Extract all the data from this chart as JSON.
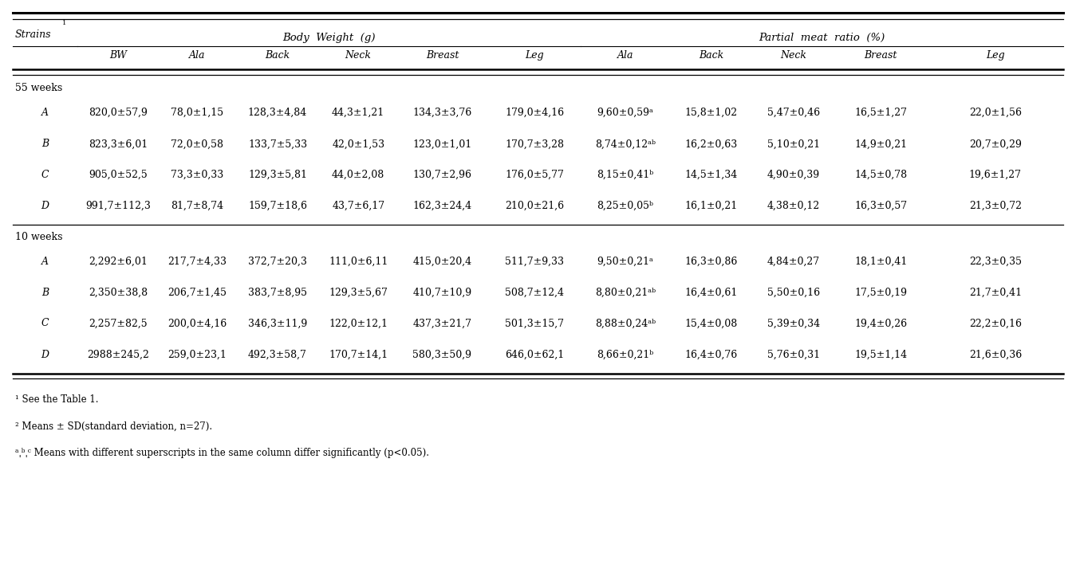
{
  "header_bw": "Body  Weight  (g)",
  "header_pmr": "Partial  meat  ratio  (%)",
  "strains_label": "Strains",
  "strains_super": "1",
  "subheaders": [
    "BW",
    "Ala",
    "Back",
    "Neck",
    "Breast",
    "Leg",
    "Ala",
    "Back",
    "Neck",
    "Breast",
    "Leg"
  ],
  "group1_label": "55 weeks",
  "group2_label": "10 weeks",
  "rows_5weeks": [
    [
      "A",
      "820,0±57,9",
      "78,0±1,15",
      "128,3±4,84",
      "44,3±1,21",
      "134,3±3,76",
      "179,0±4,16",
      "9,60±0,59ᵃ",
      "15,8±1,02",
      "5,47±0,46",
      "16,5±1,27",
      "22,0±1,56"
    ],
    [
      "B",
      "823,3±6,01",
      "72,0±0,58",
      "133,7±5,33",
      "42,0±1,53",
      "123,0±1,01",
      "170,7±3,28",
      "8,74±0,12ᵃᵇ",
      "16,2±0,63",
      "5,10±0,21",
      "14,9±0,21",
      "20,7±0,29"
    ],
    [
      "C",
      "905,0±52,5",
      "73,3±0,33",
      "129,3±5,81",
      "44,0±2,08",
      "130,7±2,96",
      "176,0±5,77",
      "8,15±0,41ᵇ",
      "14,5±1,34",
      "4,90±0,39",
      "14,5±0,78",
      "19,6±1,27"
    ],
    [
      "D",
      "991,7±112,3",
      "81,7±8,74",
      "159,7±18,6",
      "43,7±6,17",
      "162,3±24,4",
      "210,0±21,6",
      "8,25±0,05ᵇ",
      "16,1±0,21",
      "4,38±0,12",
      "16,3±0,57",
      "21,3±0,72"
    ]
  ],
  "rows_10weeks": [
    [
      "A",
      "2,292±6,01",
      "217,7±4,33",
      "372,7±20,3",
      "111,0±6,11",
      "415,0±20,4",
      "511,7±9,33",
      "9,50±0,21ᵃ",
      "16,3±0,86",
      "4,84±0,27",
      "18,1±0,41",
      "22,3±0,35"
    ],
    [
      "B",
      "2,350±38,8",
      "206,7±1,45",
      "383,7±8,95",
      "129,3±5,67",
      "410,7±10,9",
      "508,7±12,4",
      "8,80±0,21ᵃᵇ",
      "16,4±0,61",
      "5,50±0,16",
      "17,5±0,19",
      "21,7±0,41"
    ],
    [
      "C",
      "2,257±82,5",
      "200,0±4,16",
      "346,3±11,9",
      "122,0±12,1",
      "437,3±21,7",
      "501,3±15,7",
      "8,88±0,24ᵃᵇ",
      "15,4±0,08",
      "5,39±0,34",
      "19,4±0,26",
      "22,2±0,16"
    ],
    [
      "D",
      "2988±245,2",
      "259,0±23,1",
      "492,3±58,7",
      "170,7±14,1",
      "580,3±50,9",
      "646,0±62,1",
      "8,66±0,21ᵇ",
      "16,4±0,76",
      "5,76±0,31",
      "19,5±1,14",
      "21,6±0,36"
    ]
  ],
  "footnote1": "¹ See the Table 1.",
  "footnote2": "² Means ± SD(standard deviation, n=27).",
  "footnote3": "ᵃˌᵇˌᶜ Means with different superscripts in the same column differ significantly (p<0.05).",
  "bg_color": "#ffffff",
  "text_color": "#000000",
  "font_size": 9.0
}
